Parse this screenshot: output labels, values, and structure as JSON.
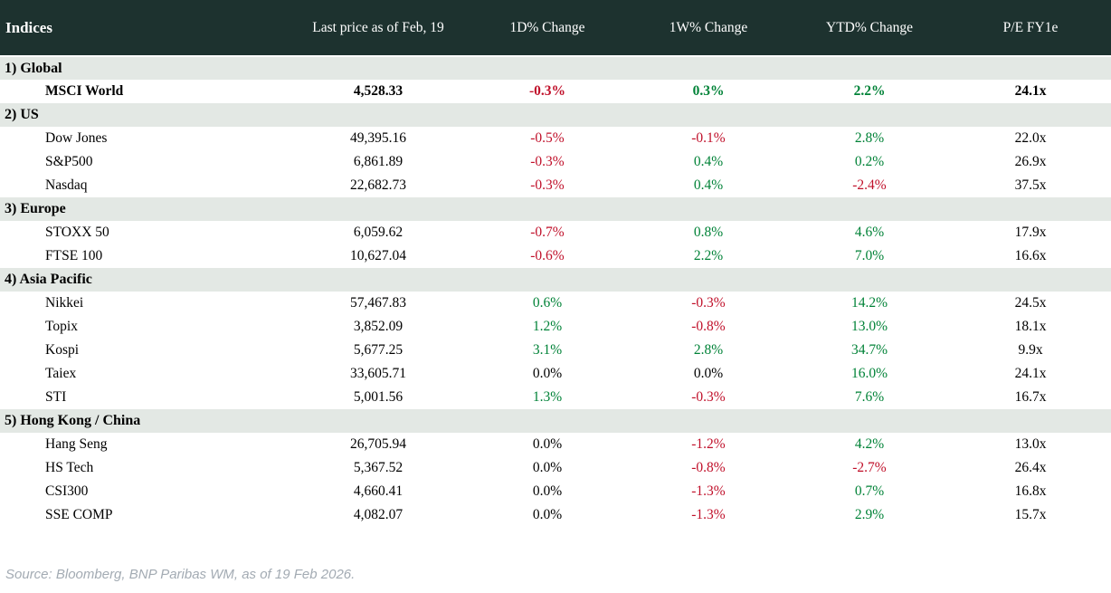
{
  "colors": {
    "header_bg": "#1d322f",
    "header_text": "#ffffff",
    "section_bg": "#e3e8e4",
    "row_bg": "#ffffff",
    "positive": "#008237",
    "negative": "#c0102a",
    "neutral": "#000000",
    "footer_text": "#a3abb3"
  },
  "footer": {
    "source_text": "Source: Bloomberg, BNP Paribas WM, as of 19 Feb 2026."
  },
  "chart_data": {
    "type": "table",
    "title": "Indices",
    "columns": [
      "Indices",
      "Last price as of Feb, 19",
      "1D% Change",
      "1W% Change",
      "YTD% Change",
      "P/E FY1e"
    ],
    "sections": [
      {
        "label": "1) Global",
        "rows": [
          {
            "name": "MSCI World",
            "last_price": "4,528.33",
            "change_1d": "-0.3%",
            "change_1w": "0.3%",
            "change_ytd": "2.2%",
            "pe_fy1e": "24.1x",
            "bold": true
          }
        ]
      },
      {
        "label": "2) US",
        "rows": [
          {
            "name": "Dow Jones",
            "last_price": "49,395.16",
            "change_1d": "-0.5%",
            "change_1w": "-0.1%",
            "change_ytd": "2.8%",
            "pe_fy1e": "22.0x",
            "bold": false
          },
          {
            "name": "S&P500",
            "last_price": "6,861.89",
            "change_1d": "-0.3%",
            "change_1w": "0.4%",
            "change_ytd": "0.2%",
            "pe_fy1e": "26.9x",
            "bold": false
          },
          {
            "name": "Nasdaq",
            "last_price": "22,682.73",
            "change_1d": "-0.3%",
            "change_1w": "0.4%",
            "change_ytd": "-2.4%",
            "pe_fy1e": "37.5x",
            "bold": false
          }
        ]
      },
      {
        "label": "3) Europe",
        "rows": [
          {
            "name": "STOXX 50",
            "last_price": "6,059.62",
            "change_1d": "-0.7%",
            "change_1w": "0.8%",
            "change_ytd": "4.6%",
            "pe_fy1e": "17.9x",
            "bold": false
          },
          {
            "name": "FTSE 100",
            "last_price": "10,627.04",
            "change_1d": "-0.6%",
            "change_1w": "2.2%",
            "change_ytd": "7.0%",
            "pe_fy1e": "16.6x",
            "bold": false
          }
        ]
      },
      {
        "label": "4) Asia Pacific",
        "rows": [
          {
            "name": "Nikkei",
            "last_price": "57,467.83",
            "change_1d": "0.6%",
            "change_1w": "-0.3%",
            "change_ytd": "14.2%",
            "pe_fy1e": "24.5x",
            "bold": false
          },
          {
            "name": "Topix",
            "last_price": "3,852.09",
            "change_1d": "1.2%",
            "change_1w": "-0.8%",
            "change_ytd": "13.0%",
            "pe_fy1e": "18.1x",
            "bold": false
          },
          {
            "name": "Kospi",
            "last_price": "5,677.25",
            "change_1d": "3.1%",
            "change_1w": "2.8%",
            "change_ytd": "34.7%",
            "pe_fy1e": "9.9x",
            "bold": false
          },
          {
            "name": "Taiex",
            "last_price": "33,605.71",
            "change_1d": "0.0%",
            "change_1w": "0.0%",
            "change_ytd": "16.0%",
            "pe_fy1e": "24.1x",
            "bold": false
          },
          {
            "name": "STI",
            "last_price": "5,001.56",
            "change_1d": "1.3%",
            "change_1w": "-0.3%",
            "change_ytd": "7.6%",
            "pe_fy1e": "16.7x",
            "bold": false
          }
        ]
      },
      {
        "label": "5) Hong Kong / China",
        "rows": [
          {
            "name": "Hang Seng",
            "last_price": "26,705.94",
            "change_1d": "0.0%",
            "change_1w": "-1.2%",
            "change_ytd": "4.2%",
            "pe_fy1e": "13.0x",
            "bold": false
          },
          {
            "name": "HS Tech",
            "last_price": "5,367.52",
            "change_1d": "0.0%",
            "change_1w": "-0.8%",
            "change_ytd": "-2.7%",
            "pe_fy1e": "26.4x",
            "bold": false
          },
          {
            "name": "CSI300",
            "last_price": "4,660.41",
            "change_1d": "0.0%",
            "change_1w": "-1.3%",
            "change_ytd": "0.7%",
            "pe_fy1e": "16.8x",
            "bold": false
          },
          {
            "name": "SSE COMP",
            "last_price": "4,082.07",
            "change_1d": "0.0%",
            "change_1w": "-1.3%",
            "change_ytd": "2.9%",
            "pe_fy1e": "15.7x",
            "bold": false
          }
        ]
      }
    ]
  }
}
